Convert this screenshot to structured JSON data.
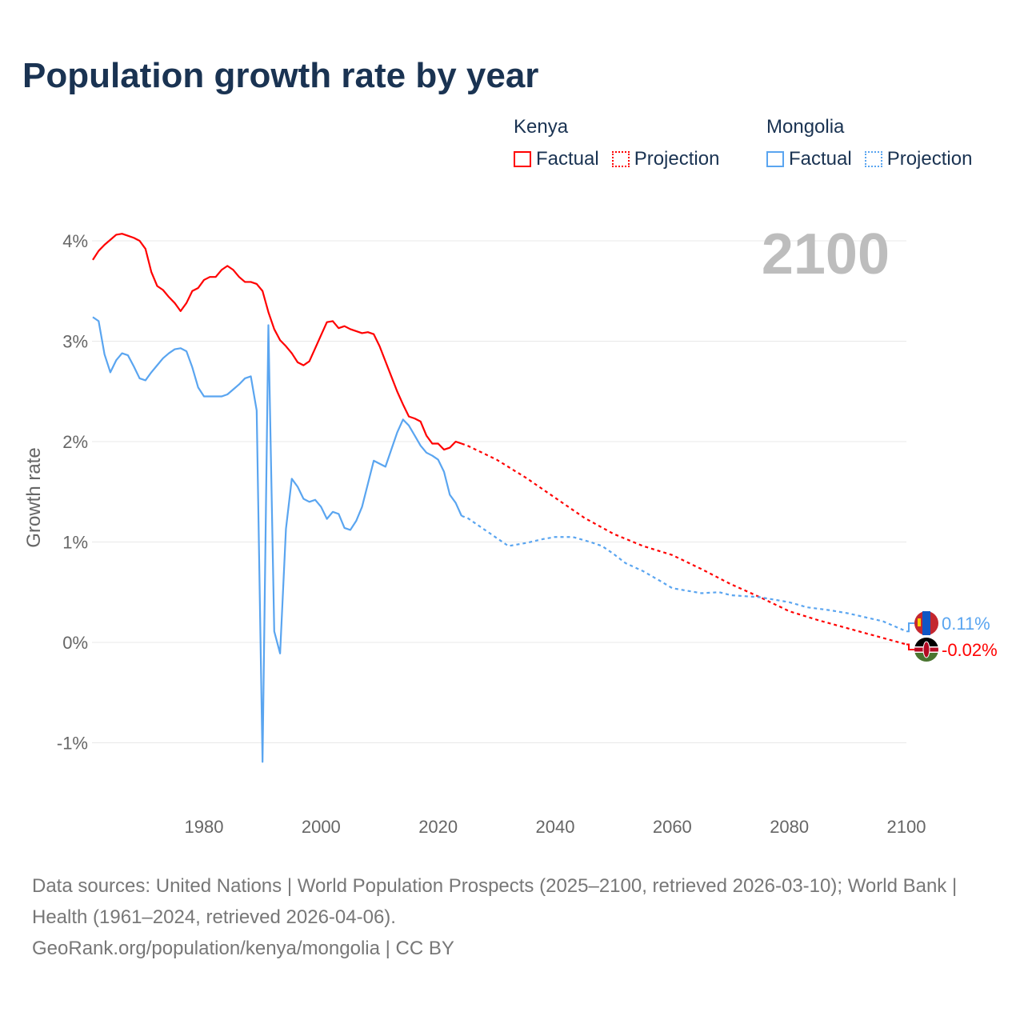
{
  "title": "Population growth rate by year",
  "legend": [
    {
      "country": "Kenya",
      "factual": "Factual",
      "projection": "Projection",
      "color": "#ff0000"
    },
    {
      "country": "Mongolia",
      "factual": "Factual",
      "projection": "Projection",
      "color": "#5aa5f0"
    }
  ],
  "year_display": "2100",
  "footer": {
    "sources": "Data sources: United Nations | World Population Prospects (2025–2100, retrieved 2026-03-10); World Bank | Health (1961–2024, retrieved 2026-04-06).",
    "link": "GeoRank.org/population/kenya/mongolia | CC BY"
  },
  "chart_data": {
    "type": "line",
    "title": "Population growth rate by year",
    "xlabel": "",
    "ylabel": "Growth rate",
    "xlim": [
      1961,
      2100
    ],
    "ylim": [
      -1.5,
      4.3
    ],
    "xticks": [
      1980,
      2000,
      2020,
      2040,
      2060,
      2080,
      2100
    ],
    "xtick_labels": [
      "1980",
      "2000",
      "2020",
      "2040",
      "2060",
      "2080",
      "2100"
    ],
    "yticks": [
      -1,
      0,
      1,
      2,
      3,
      4
    ],
    "ytick_labels": [
      "-1%",
      "0%",
      "1%",
      "2%",
      "3%",
      "4%"
    ],
    "grid": true,
    "legend_placement": "top-right",
    "series": [
      {
        "name": "Kenya",
        "color": "#ff0000",
        "end_label": "-0.02%",
        "factual": {
          "x_start": 1961,
          "values": [
            3.81,
            3.9,
            3.96,
            4.01,
            4.06,
            4.07,
            4.05,
            4.03,
            4.0,
            3.92,
            3.69,
            3.55,
            3.51,
            3.44,
            3.38,
            3.3,
            3.38,
            3.5,
            3.53,
            3.61,
            3.64,
            3.64,
            3.71,
            3.75,
            3.71,
            3.64,
            3.59,
            3.59,
            3.57,
            3.5,
            3.29,
            3.12,
            3.01,
            2.95,
            2.88,
            2.79,
            2.76,
            2.8,
            2.93,
            3.06,
            3.19,
            3.2,
            3.13,
            3.15,
            3.12,
            3.1,
            3.08,
            3.09,
            3.07,
            2.95,
            2.8,
            2.65,
            2.5,
            2.37,
            2.25,
            2.23,
            2.2,
            2.06,
            1.98,
            1.98,
            1.92,
            1.94,
            2.0,
            1.98
          ]
        },
        "projection": {
          "x": [
            2024,
            2025,
            2030,
            2035,
            2040,
            2045,
            2050,
            2055,
            2060,
            2065,
            2070,
            2075,
            2080,
            2085,
            2090,
            2095,
            2100
          ],
          "values": [
            1.98,
            1.96,
            1.82,
            1.64,
            1.44,
            1.24,
            1.08,
            0.96,
            0.87,
            0.73,
            0.58,
            0.45,
            0.31,
            0.22,
            0.14,
            0.06,
            -0.02
          ]
        }
      },
      {
        "name": "Mongolia",
        "color": "#5aa5f0",
        "end_label": "0.11%",
        "factual": {
          "x_start": 1961,
          "values": [
            3.24,
            3.2,
            2.87,
            2.69,
            2.81,
            2.88,
            2.86,
            2.75,
            2.63,
            2.61,
            2.69,
            2.76,
            2.83,
            2.88,
            2.92,
            2.93,
            2.9,
            2.74,
            2.54,
            2.45,
            2.45,
            2.45,
            2.45,
            2.47,
            2.52,
            2.57,
            2.63,
            2.65,
            2.31,
            -1.19,
            3.16,
            0.11,
            -0.11,
            1.13,
            1.63,
            1.55,
            1.43,
            1.4,
            1.42,
            1.35,
            1.23,
            1.3,
            1.28,
            1.14,
            1.12,
            1.21,
            1.35,
            1.58,
            1.81,
            1.78,
            1.75,
            1.92,
            2.09,
            2.22,
            2.16,
            2.06,
            1.96,
            1.89,
            1.86,
            1.82,
            1.7,
            1.47,
            1.39,
            1.26
          ]
        },
        "projection": {
          "x": [
            2024,
            2025,
            2028,
            2030,
            2032,
            2035,
            2038,
            2040,
            2043,
            2046,
            2048,
            2050,
            2052,
            2055,
            2058,
            2060,
            2065,
            2068,
            2070,
            2075,
            2080,
            2083,
            2087,
            2090,
            2093,
            2096,
            2100
          ],
          "values": [
            1.26,
            1.24,
            1.12,
            1.04,
            0.96,
            0.99,
            1.03,
            1.05,
            1.05,
            1.0,
            0.96,
            0.88,
            0.79,
            0.71,
            0.61,
            0.54,
            0.49,
            0.5,
            0.47,
            0.45,
            0.4,
            0.35,
            0.32,
            0.29,
            0.25,
            0.21,
            0.11
          ]
        }
      }
    ]
  }
}
